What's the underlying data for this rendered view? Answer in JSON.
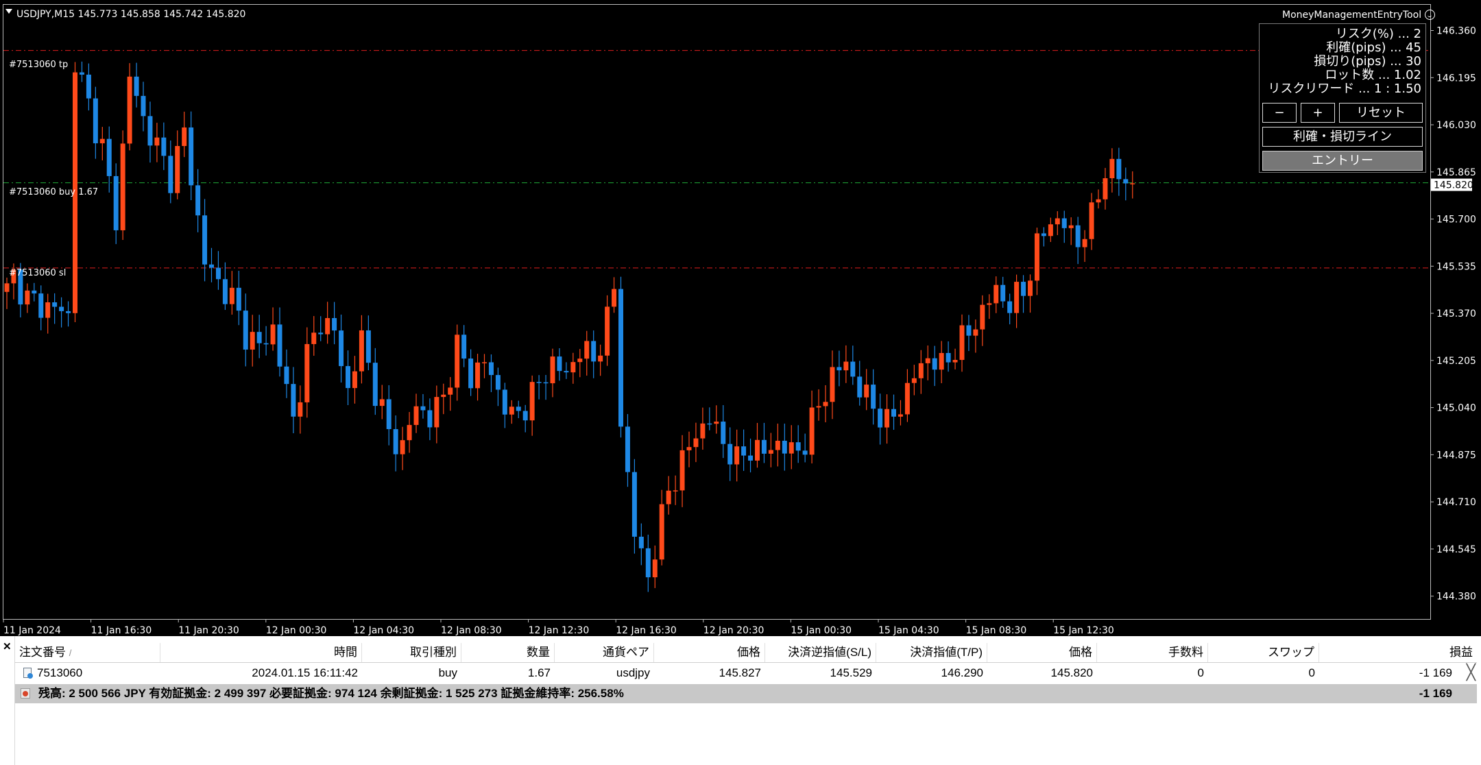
{
  "chart": {
    "symbol_line": "USDJPY,M15  145.773 145.858 145.742 145.820",
    "current_price_label": "145.820",
    "tp_line_label": "#7513060 tp",
    "entry_line_label": "#7513060 buy 1.67",
    "sl_line_label": "#7513060 sl",
    "colors": {
      "up": "#ff4a1a",
      "down": "#1e88e5",
      "tp_sl_line": "#e01e1e",
      "entry_line": "#1fae3a",
      "background": "#000000",
      "grid_border": "#bdbdbd"
    }
  },
  "chart_data": {
    "type": "candlestick",
    "symbol": "USDJPY",
    "timeframe": "M15",
    "ohlc_header": {
      "open": 145.773,
      "high": 145.858,
      "low": 145.742,
      "close": 145.82
    },
    "ylim": [
      144.3,
      146.45
    ],
    "y_ticks": [
      146.36,
      146.195,
      146.03,
      145.865,
      145.7,
      145.535,
      145.37,
      145.205,
      145.04,
      144.875,
      144.71,
      144.545,
      144.38
    ],
    "y_tick_labels": [
      "146.360",
      "146.195",
      "146.030",
      "145.865",
      "145.700",
      "145.535",
      "145.370",
      "145.205",
      "145.040",
      "144.875",
      "144.710",
      "144.545",
      "144.380"
    ],
    "x_tick_labels": [
      "11 Jan 2024",
      "11 Jan 16:30",
      "11 Jan 20:30",
      "12 Jan 00:30",
      "12 Jan 04:30",
      "12 Jan 08:30",
      "12 Jan 12:30",
      "12 Jan 16:30",
      "12 Jan 20:30",
      "15 Jan 00:30",
      "15 Jan 04:30",
      "15 Jan 08:30",
      "15 Jan 12:30"
    ],
    "horizontal_lines": {
      "tp": 146.29,
      "entry": 145.827,
      "sl": 145.529
    },
    "current_price": 145.82,
    "close_path": [
      [
        0,
        145.45
      ],
      [
        1,
        145.5
      ],
      [
        3,
        145.42
      ],
      [
        5,
        145.4
      ],
      [
        8,
        145.38
      ],
      [
        9,
        145.36
      ],
      [
        10,
        146.25
      ],
      [
        12,
        146.1
      ],
      [
        14,
        145.95
      ],
      [
        16,
        145.7
      ],
      [
        18,
        146.2
      ],
      [
        20,
        146.05
      ],
      [
        22,
        145.95
      ],
      [
        24,
        145.85
      ],
      [
        26,
        146.0
      ],
      [
        27,
        145.85
      ],
      [
        28,
        145.7
      ],
      [
        29,
        145.55
      ],
      [
        31,
        145.48
      ],
      [
        33,
        145.42
      ],
      [
        35,
        145.3
      ],
      [
        37,
        145.25
      ],
      [
        39,
        145.32
      ],
      [
        40,
        145.2
      ],
      [
        42,
        145.0
      ],
      [
        44,
        145.22
      ],
      [
        46,
        145.35
      ],
      [
        48,
        145.3
      ],
      [
        50,
        145.1
      ],
      [
        52,
        145.28
      ],
      [
        54,
        145.1
      ],
      [
        56,
        144.95
      ],
      [
        58,
        144.9
      ],
      [
        60,
        145.05
      ],
      [
        62,
        145.0
      ],
      [
        64,
        145.08
      ],
      [
        66,
        145.25
      ],
      [
        68,
        145.15
      ],
      [
        70,
        145.2
      ],
      [
        72,
        145.1
      ],
      [
        74,
        145.0
      ],
      [
        76,
        145.05
      ],
      [
        78,
        145.12
      ],
      [
        80,
        145.2
      ],
      [
        82,
        145.15
      ],
      [
        84,
        145.25
      ],
      [
        86,
        145.2
      ],
      [
        88,
        145.35
      ],
      [
        89,
        145.45
      ],
      [
        90,
        145.0
      ],
      [
        92,
        144.6
      ],
      [
        94,
        144.45
      ],
      [
        95,
        144.55
      ],
      [
        97,
        144.75
      ],
      [
        99,
        144.85
      ],
      [
        101,
        144.95
      ],
      [
        103,
        145.0
      ],
      [
        105,
        144.92
      ],
      [
        107,
        144.85
      ],
      [
        109,
        144.9
      ],
      [
        111,
        144.88
      ],
      [
        113,
        144.92
      ],
      [
        115,
        144.88
      ],
      [
        117,
        144.92
      ],
      [
        119,
        145.05
      ],
      [
        121,
        145.15
      ],
      [
        123,
        145.2
      ],
      [
        125,
        145.1
      ],
      [
        127,
        145.05
      ],
      [
        129,
        144.98
      ],
      [
        131,
        145.05
      ],
      [
        133,
        145.15
      ],
      [
        135,
        145.22
      ],
      [
        137,
        145.18
      ],
      [
        139,
        145.25
      ],
      [
        141,
        145.3
      ],
      [
        143,
        145.38
      ],
      [
        145,
        145.45
      ],
      [
        147,
        145.4
      ],
      [
        149,
        145.45
      ],
      [
        151,
        145.6
      ],
      [
        153,
        145.7
      ],
      [
        155,
        145.68
      ],
      [
        157,
        145.62
      ],
      [
        159,
        145.7
      ],
      [
        161,
        145.88
      ],
      [
        163,
        145.85
      ],
      [
        165,
        145.82
      ]
    ]
  },
  "tool": {
    "title": "MoneyManagementEntryTool",
    "params": [
      "リスク(%) ... 2",
      "利確(pips) ... 45",
      "損切り(pips) ... 30",
      "ロット数 ... 1.02",
      "リスクリワード ... 1 : 1.50"
    ],
    "minus_label": "−",
    "plus_label": "+",
    "reset_label": "リセット",
    "tpsl_label": "利確・損切ライン",
    "entry_label": "エントリー"
  },
  "terminal": {
    "headers": [
      "注文番号",
      "時間",
      "取引種別",
      "数量",
      "通貨ペア",
      "価格",
      "決済逆指値(S/L)",
      "決済指値(T/P)",
      "価格",
      "手数料",
      "スワップ",
      "損益"
    ],
    "sort_indicator": "/",
    "row": [
      "7513060",
      "2024.01.15 16:11:42",
      "buy",
      "1.67",
      "usdjpy",
      "145.827",
      "145.529",
      "146.290",
      "145.820",
      "0",
      "0",
      "-1 169"
    ],
    "summary": "残高: 2 500 566 JPY  有効証拠金: 2 499 397  必要証拠金: 974 124  余剰証拠金: 1 525 273  証拠金維持率: 256.58%",
    "summary_pl": "-1 169"
  }
}
